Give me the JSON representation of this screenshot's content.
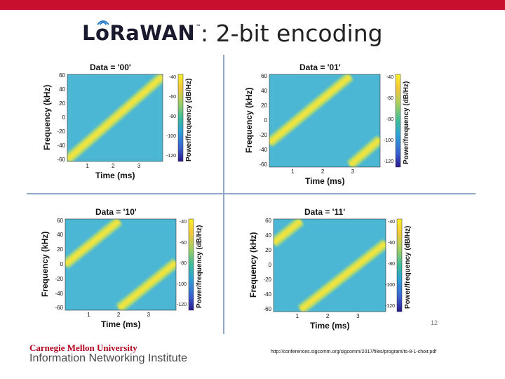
{
  "slide": {
    "logo_text": "LoRaWAN",
    "logo_trademark": "™",
    "title": ": 2-bit encoding",
    "page_number": "12",
    "footer_org_line1": "Carnegie Mellon University",
    "footer_org_line2": "Information Networking Institute",
    "source_url": "http://conferences.sigcomm.org/sigcomm/2017/files/program/ts-8-1-choir.pdf"
  },
  "colors": {
    "accent_bar": "#c8102e",
    "divider": "#8fa8c8",
    "cmu_red": "#b0001e"
  },
  "chart_data": [
    {
      "type": "heatmap",
      "title": "Data = '00'",
      "xlabel": "Time (ms)",
      "ylabel": "Frequency (kHz)",
      "colorbar_label": "Power/frequency (dB/Hz)",
      "x_ticks": [
        "1",
        "2",
        "3"
      ],
      "y_ticks": [
        "60",
        "40",
        "20",
        "0",
        "-20",
        "-40",
        "-60"
      ],
      "colorbar_ticks": [
        "-40",
        "-60",
        "-80",
        "-100",
        "-120"
      ],
      "xlim": [
        0.2,
        3.9
      ],
      "ylim": [
        -62.5,
        62.5
      ],
      "chirp_segments": [
        [
          [
            0.2,
            -60
          ],
          [
            3.9,
            60
          ]
        ]
      ]
    },
    {
      "type": "heatmap",
      "title": "Data = '01'",
      "xlabel": "Time (ms)",
      "ylabel": "Frequency (kHz)",
      "colorbar_label": "Power/frequency (dB/Hz)",
      "x_ticks": [
        "1",
        "2",
        "3"
      ],
      "y_ticks": [
        "60",
        "40",
        "20",
        "0",
        "-20",
        "-40",
        "-60"
      ],
      "colorbar_ticks": [
        "-40",
        "-60",
        "-80",
        "-100",
        "-120"
      ],
      "xlim": [
        0.2,
        3.9
      ],
      "ylim": [
        -62.5,
        62.5
      ],
      "chirp_segments": [
        [
          [
            0.2,
            -30
          ],
          [
            2.9,
            60
          ]
        ],
        [
          [
            2.9,
            -60
          ],
          [
            3.9,
            -25
          ]
        ]
      ]
    },
    {
      "type": "heatmap",
      "title": "Data = '10'",
      "xlabel": "Time (ms)",
      "ylabel": "Frequency (kHz)",
      "colorbar_label": "Power/frequency (dB/Hz)",
      "x_ticks": [
        "1",
        "2",
        "3"
      ],
      "y_ticks": [
        "60",
        "40",
        "20",
        "0",
        "-20",
        "-40",
        "-60"
      ],
      "colorbar_ticks": [
        "-40",
        "-60",
        "-80",
        "-100",
        "-120"
      ],
      "xlim": [
        0.2,
        3.9
      ],
      "ylim": [
        -62.5,
        62.5
      ],
      "chirp_segments": [
        [
          [
            0.2,
            0
          ],
          [
            2.0,
            60
          ]
        ],
        [
          [
            2.0,
            -60
          ],
          [
            3.9,
            3
          ]
        ]
      ]
    },
    {
      "type": "heatmap",
      "title": "Data = '11'",
      "xlabel": "Time (ms)",
      "ylabel": "Frequency (kHz)",
      "colorbar_label": "Power/frequency (dB/Hz)",
      "x_ticks": [
        "1",
        "2",
        "3"
      ],
      "y_ticks": [
        "60",
        "40",
        "20",
        "0",
        "-20",
        "-40",
        "-60"
      ],
      "colorbar_ticks": [
        "-40",
        "-60",
        "-80",
        "-100",
        "-120"
      ],
      "xlim": [
        0.2,
        3.9
      ],
      "ylim": [
        -62.5,
        62.5
      ],
      "chirp_segments": [
        [
          [
            0.2,
            30
          ],
          [
            1.1,
            60
          ]
        ],
        [
          [
            1.1,
            -60
          ],
          [
            3.9,
            30
          ]
        ]
      ]
    }
  ]
}
